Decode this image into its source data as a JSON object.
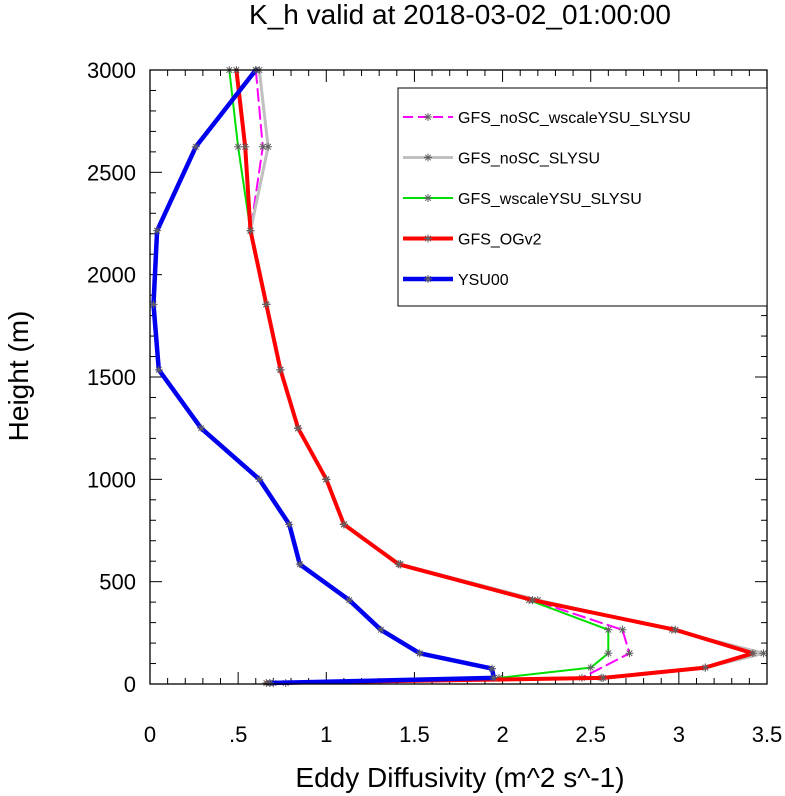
{
  "chart_data": {
    "type": "line",
    "title": "K_h valid at 2018-03-02_01:00:00",
    "xlabel": "Eddy Diffusivity (m^2 s^-1)",
    "ylabel": "Height (m)",
    "xlim": [
      0,
      3.5
    ],
    "ylim": [
      0,
      3000
    ],
    "x_ticks": [
      0,
      0.5,
      1,
      1.5,
      2,
      2.5,
      3,
      3.5
    ],
    "x_tick_labels": [
      "0",
      ".5",
      "1",
      "1.5",
      "2",
      "2.5",
      "3",
      "3.5"
    ],
    "y_ticks": [
      0,
      500,
      1000,
      1500,
      2000,
      2500,
      3000
    ],
    "y_tick_labels": [
      "0",
      "500",
      "1000",
      "1500",
      "2000",
      "2500",
      "3000"
    ],
    "legend_position": "top-right",
    "series": [
      {
        "name": "GFS_noSC_wscaleYSU_SLYSU",
        "color": "#ff00ff",
        "dash": "dashed",
        "width": 2,
        "marker": "asterisk",
        "points": [
          [
            0.77,
            5
          ],
          [
            2.45,
            30
          ],
          [
            2.72,
            150
          ],
          [
            2.68,
            265
          ],
          [
            2.17,
            410
          ],
          [
            1.42,
            585
          ],
          [
            1.1,
            780
          ],
          [
            1.0,
            1000
          ],
          [
            0.84,
            1250
          ],
          [
            0.74,
            1535
          ],
          [
            0.66,
            1855
          ],
          [
            0.57,
            2215
          ],
          [
            0.64,
            2625
          ],
          [
            0.6,
            3000
          ]
        ]
      },
      {
        "name": "GFS_noSC_SLYSU",
        "color": "#c0c0c0",
        "dash": "solid",
        "width": 3,
        "marker": "asterisk",
        "points": [
          [
            0.68,
            5
          ],
          [
            2.56,
            30
          ],
          [
            3.15,
            80
          ],
          [
            3.48,
            150
          ],
          [
            2.96,
            265
          ],
          [
            2.2,
            410
          ],
          [
            1.42,
            585
          ],
          [
            1.1,
            780
          ],
          [
            1.0,
            1000
          ],
          [
            0.84,
            1250
          ],
          [
            0.74,
            1535
          ],
          [
            0.66,
            1855
          ],
          [
            0.57,
            2215
          ],
          [
            0.67,
            2625
          ],
          [
            0.62,
            3000
          ]
        ]
      },
      {
        "name": "GFS_wscaleYSU_SLYSU",
        "color": "#00e000",
        "dash": "solid",
        "width": 2,
        "marker": "asterisk",
        "points": [
          [
            0.7,
            5
          ],
          [
            1.98,
            30
          ],
          [
            2.5,
            80
          ],
          [
            2.6,
            150
          ],
          [
            2.6,
            265
          ],
          [
            2.15,
            410
          ],
          [
            1.42,
            585
          ],
          [
            1.1,
            780
          ],
          [
            1.0,
            1000
          ],
          [
            0.84,
            1250
          ],
          [
            0.74,
            1535
          ],
          [
            0.66,
            1855
          ],
          [
            0.57,
            2215
          ],
          [
            0.5,
            2625
          ],
          [
            0.45,
            3000
          ]
        ]
      },
      {
        "name": "GFS_OGv2",
        "color": "#ff0000",
        "dash": "solid",
        "width": 4,
        "marker": "asterisk",
        "points": [
          [
            0.66,
            5
          ],
          [
            2.57,
            30
          ],
          [
            3.15,
            80
          ],
          [
            3.42,
            150
          ],
          [
            2.98,
            265
          ],
          [
            2.17,
            410
          ],
          [
            1.41,
            585
          ],
          [
            1.1,
            780
          ],
          [
            1.0,
            1000
          ],
          [
            0.84,
            1250
          ],
          [
            0.74,
            1535
          ],
          [
            0.66,
            1855
          ],
          [
            0.57,
            2215
          ],
          [
            0.54,
            2625
          ],
          [
            0.49,
            3000
          ]
        ]
      },
      {
        "name": "YSU00",
        "color": "#0000ee",
        "dash": "solid",
        "width": 4.5,
        "marker": "asterisk",
        "points": [
          [
            0.68,
            5
          ],
          [
            1.95,
            30
          ],
          [
            1.94,
            75
          ],
          [
            1.53,
            150
          ],
          [
            1.31,
            265
          ],
          [
            1.13,
            410
          ],
          [
            0.85,
            585
          ],
          [
            0.79,
            780
          ],
          [
            0.62,
            1000
          ],
          [
            0.29,
            1250
          ],
          [
            0.05,
            1535
          ],
          [
            0.02,
            1855
          ],
          [
            0.04,
            2215
          ],
          [
            0.26,
            2625
          ],
          [
            0.6,
            3000
          ]
        ]
      }
    ]
  }
}
